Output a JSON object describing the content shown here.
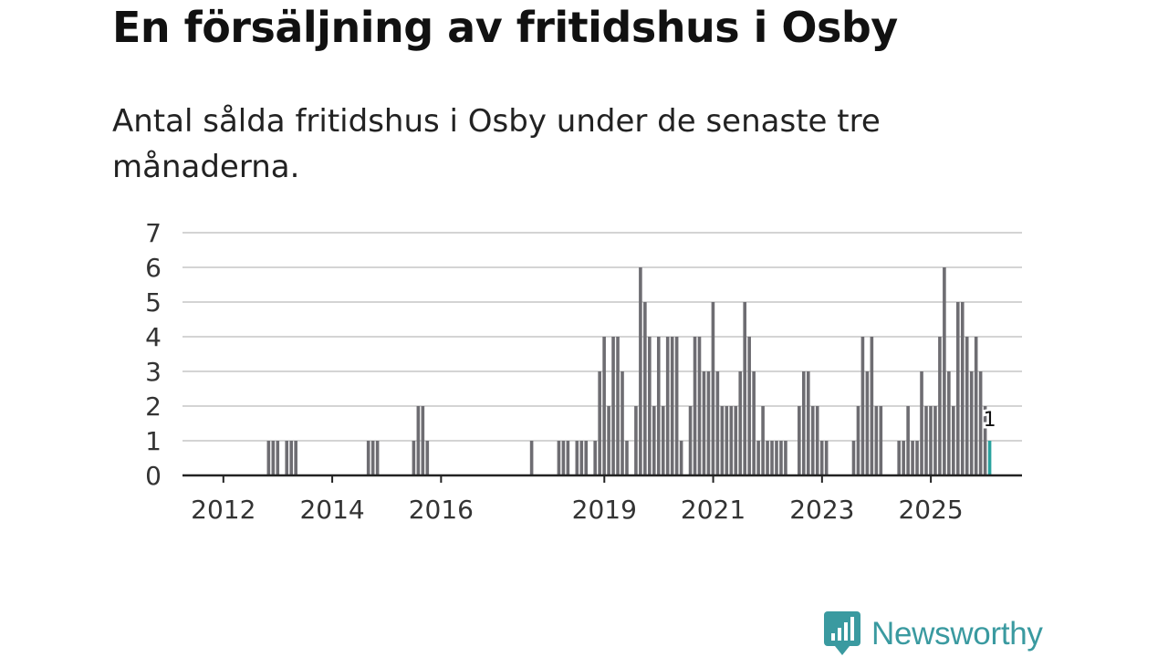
{
  "title": "En försäljning av fritidshus i Osby",
  "subtitle": "Antal sålda fritidshus i Osby under de senaste tre månaderna.",
  "brand": {
    "name": "Newsworthy",
    "icon": "newsworthy-logo-icon",
    "color": "#3a9aa0"
  },
  "colors": {
    "bar": "#6e6d72",
    "highlight": "#2aa39f",
    "grid": "#d4d4d4",
    "axis": "#222222"
  },
  "chart_data": {
    "type": "bar",
    "title": "En försäljning av fritidshus i Osby",
    "xlabel": "",
    "ylabel": "",
    "ylim": [
      0,
      7
    ],
    "yticks": [
      "0",
      "1",
      "2",
      "3",
      "4",
      "5",
      "6",
      "7"
    ],
    "xticks": [
      {
        "label": "2012",
        "month_index": 0
      },
      {
        "label": "2014",
        "month_index": 24
      },
      {
        "label": "2016",
        "month_index": 48
      },
      {
        "label": "2019",
        "month_index": 84
      },
      {
        "label": "2021",
        "month_index": 108
      },
      {
        "label": "2023",
        "month_index": 132
      },
      {
        "label": "2025",
        "month_index": 156
      }
    ],
    "month_start": "2012-01",
    "values": [
      0,
      0,
      0,
      0,
      0,
      0,
      0,
      0,
      0,
      0,
      0,
      0,
      0,
      0,
      0,
      1,
      1,
      1,
      0,
      1,
      1,
      1,
      0,
      0,
      0,
      0,
      0,
      0,
      0,
      0,
      0,
      0,
      0,
      0,
      0,
      0,
      0,
      1,
      1,
      1,
      0,
      0,
      0,
      0,
      0,
      0,
      0,
      1,
      2,
      2,
      1,
      0,
      0,
      0,
      0,
      0,
      0,
      0,
      0,
      0,
      0,
      0,
      0,
      0,
      0,
      0,
      0,
      0,
      0,
      0,
      0,
      0,
      0,
      1,
      0,
      0,
      0,
      0,
      0,
      1,
      1,
      1,
      0,
      1,
      1,
      1,
      0,
      1,
      3,
      4,
      2,
      4,
      4,
      3,
      1,
      0,
      2,
      6,
      5,
      4,
      2,
      4,
      2,
      4,
      4,
      4,
      1,
      0,
      2,
      4,
      4,
      3,
      3,
      5,
      3,
      2,
      2,
      2,
      2,
      3,
      5,
      4,
      3,
      1,
      2,
      1,
      1,
      1,
      1,
      1,
      0,
      0,
      2,
      3,
      3,
      2,
      2,
      1,
      1,
      0,
      0,
      0,
      0,
      0,
      1,
      2,
      4,
      3,
      4,
      2,
      2,
      0,
      0,
      0,
      1,
      1,
      2,
      1,
      1,
      3,
      2,
      2,
      2,
      4,
      6,
      3,
      2,
      5,
      5,
      4,
      3,
      4,
      3,
      2,
      1
    ],
    "highlight_last": true,
    "last_value_label": "1"
  }
}
